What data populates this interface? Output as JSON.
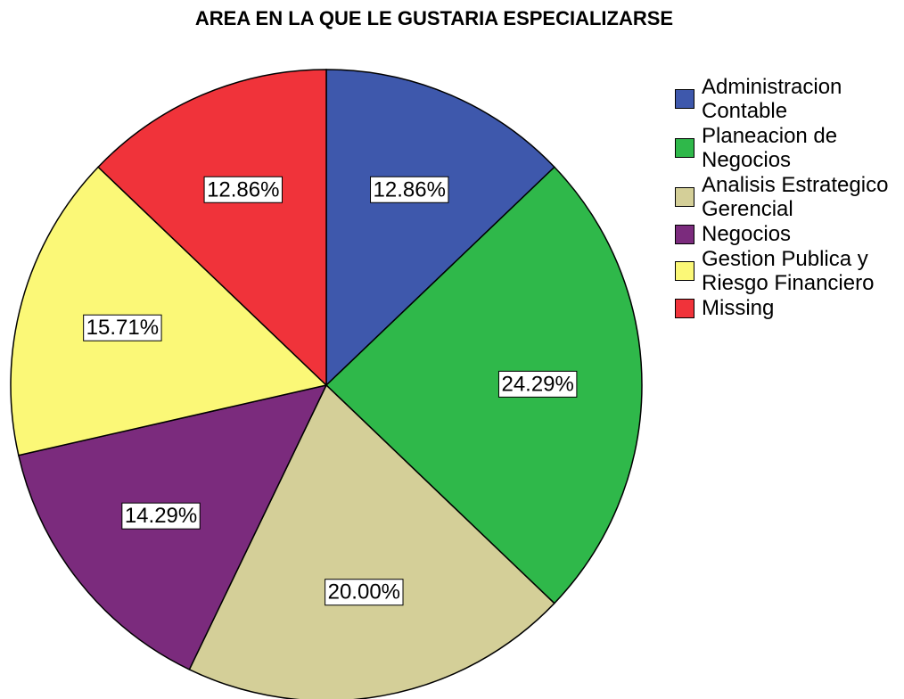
{
  "chart_data": {
    "type": "pie",
    "title": "AREA EN LA QUE LE GUSTARIA ESPECIALIZARSE",
    "categories": [
      "Administracion Contable",
      "Planeacion de Negocios",
      "Analisis Estrategico Gerencial",
      "Negocios",
      "Gestion Publica y Riesgo Financiero",
      "Missing"
    ],
    "values": [
      12.86,
      24.29,
      20.0,
      14.29,
      15.71,
      12.86
    ],
    "value_labels": [
      "12.86%",
      "24.29%",
      "20.00%",
      "14.29%",
      "15.71%",
      "12.86%"
    ],
    "colors": [
      "#3e58ac",
      "#2fb84a",
      "#d4cf98",
      "#7b2b7d",
      "#fbf877",
      "#f0333a"
    ],
    "legend": "right"
  }
}
